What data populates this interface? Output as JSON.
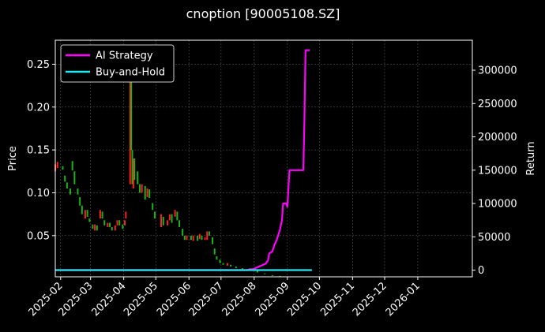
{
  "chart_data": {
    "type": "line",
    "title": "cnoption [90005108.SZ]",
    "ylabel_left": "Price",
    "ylabel_right": "Return",
    "ylim_left": [
      0.002,
      0.278
    ],
    "ylim_right": [
      -10000,
      345000
    ],
    "xlim": [
      "2025-01-27",
      "2026-02-21"
    ],
    "x_ticks": [
      "2025-02",
      "2025-03",
      "2025-04",
      "2025-05",
      "2025-06",
      "2025-07",
      "2025-08",
      "2025-09",
      "2025-10",
      "2025-11",
      "2025-12",
      "2026-01"
    ],
    "y_ticks_left": [
      "0.05",
      "0.10",
      "0.15",
      "0.20",
      "0.25"
    ],
    "y_ticks_right": [
      "0",
      "50000",
      "100000",
      "150000",
      "200000",
      "250000",
      "300000"
    ],
    "grid": true,
    "legend_position": "top-left",
    "up_color": "#ff2020",
    "down_color": "#19b219",
    "series": [
      {
        "name": "AI Strategy",
        "color": "#ff00ff",
        "points": [
          [
            "2025-01-27",
            0
          ],
          [
            "2025-07-25",
            0
          ],
          [
            "2025-08-01",
            2000
          ],
          [
            "2025-08-05",
            5000
          ],
          [
            "2025-08-08",
            7000
          ],
          [
            "2025-08-12",
            10000
          ],
          [
            "2025-08-14",
            15000
          ],
          [
            "2025-08-15",
            25000
          ],
          [
            "2025-08-18",
            28000
          ],
          [
            "2025-08-20",
            38000
          ],
          [
            "2025-08-22",
            45000
          ],
          [
            "2025-08-25",
            60000
          ],
          [
            "2025-08-27",
            75000
          ],
          [
            "2025-08-28",
            100000
          ],
          [
            "2025-08-31",
            100000
          ],
          [
            "2025-09-01",
            95000
          ],
          [
            "2025-09-03",
            150000
          ],
          [
            "2025-09-16",
            150000
          ],
          [
            "2025-09-17",
            225000
          ],
          [
            "2025-09-18",
            330000
          ],
          [
            "2025-09-22",
            330000
          ]
        ]
      },
      {
        "name": "Buy-and-Hold",
        "color": "#22e8f0",
        "points": [
          [
            "2025-01-27",
            0
          ],
          [
            "2025-09-24",
            0
          ]
        ]
      }
    ],
    "candles": [
      [
        "2025-01-27",
        0.125,
        0.133
      ],
      [
        "2025-01-29",
        0.129,
        0.136
      ],
      [
        "2025-02-03",
        0.131,
        0.127
      ],
      [
        "2025-02-05",
        0.12,
        0.113
      ],
      [
        "2025-02-07",
        0.112,
        0.105
      ],
      [
        "2025-02-10",
        0.105,
        0.098
      ],
      [
        "2025-02-12",
        0.137,
        0.126
      ],
      [
        "2025-02-14",
        0.125,
        0.11
      ],
      [
        "2025-02-17",
        0.105,
        0.098
      ],
      [
        "2025-02-19",
        0.095,
        0.085
      ],
      [
        "2025-02-21",
        0.085,
        0.075
      ],
      [
        "2025-02-24",
        0.07,
        0.08
      ],
      [
        "2025-02-26",
        0.08,
        0.072
      ],
      [
        "2025-02-28",
        0.07,
        0.066
      ],
      [
        "2025-03-03",
        0.063,
        0.058
      ],
      [
        "2025-03-05",
        0.056,
        0.063
      ],
      [
        "2025-03-07",
        0.062,
        0.056
      ],
      [
        "2025-03-10",
        0.07,
        0.08
      ],
      [
        "2025-03-12",
        0.078,
        0.07
      ],
      [
        "2025-03-14",
        0.068,
        0.062
      ],
      [
        "2025-03-17",
        0.06,
        0.065
      ],
      [
        "2025-03-19",
        0.065,
        0.06
      ],
      [
        "2025-03-21",
        0.06,
        0.056
      ],
      [
        "2025-03-24",
        0.056,
        0.062
      ],
      [
        "2025-03-26",
        0.062,
        0.068
      ],
      [
        "2025-03-28",
        0.068,
        0.062
      ],
      [
        "2025-03-31",
        0.063,
        0.058
      ],
      [
        "2025-04-02",
        0.062,
        0.068
      ],
      [
        "2025-04-03",
        0.07,
        0.078
      ],
      [
        "2025-04-07",
        0.11,
        0.23
      ],
      [
        "2025-04-08",
        0.24,
        0.15
      ],
      [
        "2025-04-09",
        0.15,
        0.11
      ],
      [
        "2025-04-10",
        0.105,
        0.14
      ],
      [
        "2025-04-11",
        0.14,
        0.115
      ],
      [
        "2025-04-14",
        0.125,
        0.11
      ],
      [
        "2025-04-16",
        0.11,
        0.1
      ],
      [
        "2025-04-18",
        0.1,
        0.11
      ],
      [
        "2025-04-21",
        0.108,
        0.092
      ],
      [
        "2025-04-23",
        0.095,
        0.105
      ],
      [
        "2025-04-25",
        0.104,
        0.094
      ],
      [
        "2025-04-28",
        0.088,
        0.08
      ],
      [
        "2025-04-30",
        0.078,
        0.07
      ],
      [
        "2025-05-06",
        0.06,
        0.075
      ],
      [
        "2025-05-08",
        0.072,
        0.062
      ],
      [
        "2025-05-12",
        0.062,
        0.068
      ],
      [
        "2025-05-14",
        0.068,
        0.075
      ],
      [
        "2025-05-16",
        0.075,
        0.065
      ],
      [
        "2025-05-19",
        0.072,
        0.08
      ],
      [
        "2025-05-21",
        0.078,
        0.068
      ],
      [
        "2025-05-23",
        0.068,
        0.06
      ],
      [
        "2025-05-26",
        0.058,
        0.05
      ],
      [
        "2025-05-28",
        0.05,
        0.045
      ],
      [
        "2025-05-30",
        0.045,
        0.05
      ],
      [
        "2025-06-03",
        0.05,
        0.045
      ],
      [
        "2025-06-05",
        0.044,
        0.05
      ],
      [
        "2025-06-09",
        0.05,
        0.044
      ],
      [
        "2025-06-11",
        0.046,
        0.052
      ],
      [
        "2025-06-13",
        0.05,
        0.045
      ],
      [
        "2025-06-16",
        0.045,
        0.048
      ],
      [
        "2025-06-18",
        0.045,
        0.055
      ],
      [
        "2025-06-20",
        0.055,
        0.05
      ],
      [
        "2025-06-23",
        0.048,
        0.04
      ],
      [
        "2025-06-25",
        0.035,
        0.028
      ],
      [
        "2025-06-27",
        0.026,
        0.022
      ],
      [
        "2025-06-30",
        0.022,
        0.018
      ],
      [
        "2025-07-03",
        0.018,
        0.016
      ],
      [
        "2025-07-07",
        0.015,
        0.018
      ],
      [
        "2025-07-10",
        0.016,
        0.014
      ],
      [
        "2025-07-15",
        0.014,
        0.012
      ],
      [
        "2025-07-21",
        0.012,
        0.01
      ],
      [
        "2025-07-28",
        0.01,
        0.012
      ],
      [
        "2025-08-04",
        0.009,
        0.007
      ],
      [
        "2025-08-11",
        0.006,
        0.005
      ],
      [
        "2025-08-18",
        0.004,
        0.003
      ],
      [
        "2025-08-25",
        0.003,
        0.002
      ]
    ]
  }
}
